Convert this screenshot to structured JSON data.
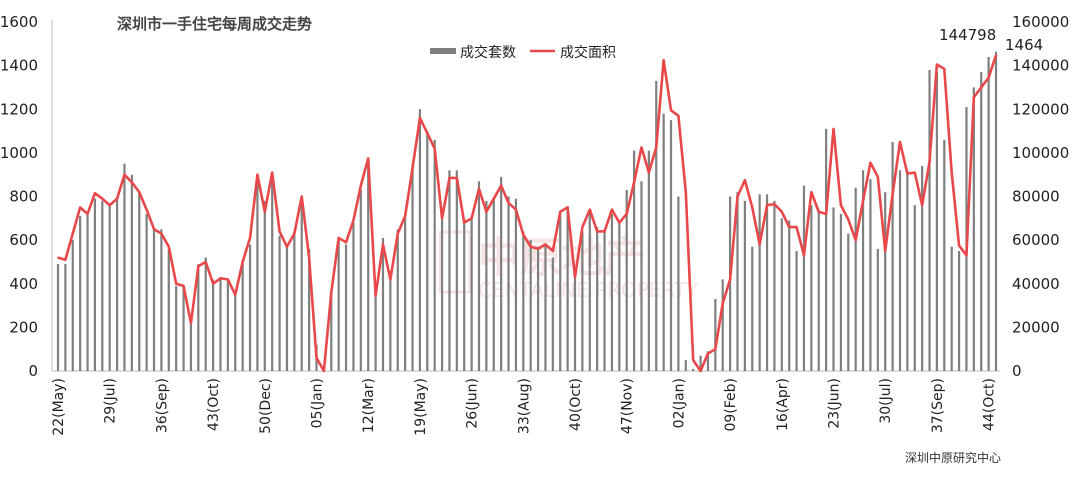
{
  "chart_data": {
    "type": "bar+line",
    "title": "深圳市一手住宅每周成交走势",
    "source": "深圳中原研究中心",
    "watermark": {
      "cn": "中原地产",
      "en": "CENTALINE PROPERTY"
    },
    "legend": [
      "成交套数",
      "成交面积"
    ],
    "legend_position": "top-center",
    "colors": {
      "bars": "#7f7f7f",
      "line": "#e8484a"
    },
    "y_left": {
      "ticks": [
        "0",
        "200",
        "400",
        "600",
        "800",
        "1000",
        "1200",
        "1400",
        "1600"
      ],
      "lim": [
        0,
        1600
      ]
    },
    "y_right": {
      "ticks": [
        "0",
        "20000",
        "40000",
        "60000",
        "80000",
        "100000",
        "120000",
        "140000",
        "160000"
      ],
      "lim": [
        0,
        160000
      ]
    },
    "x_tick_labels": [
      "22(May)",
      "29(Jul)",
      "36(Sep)",
      "43(Oct)",
      "50(Dec)",
      "05(Jan)",
      "12(Mar)",
      "19(May)",
      "26(Jun)",
      "33(Aug)",
      "40(Oct)",
      "47(Nov)",
      "02(Jan)",
      "09(Feb)",
      "16(Apr)",
      "23(Jun)",
      "30(Jul)",
      "37(Sep)",
      "44(Oct)"
    ],
    "x_tick_index": [
      0,
      7,
      14,
      21,
      28,
      35,
      42,
      49,
      56,
      63,
      70,
      77,
      84,
      91,
      98,
      105,
      112,
      119,
      126
    ],
    "annotations": {
      "last_area": "144798",
      "last_units": "1464"
    },
    "series": [
      {
        "name": "成交套数",
        "axis": "left",
        "values": [
          490,
          490,
          600,
          710,
          730,
          790,
          780,
          770,
          790,
          950,
          900,
          820,
          720,
          650,
          650,
          560,
          390,
          390,
          230,
          490,
          520,
          420,
          430,
          420,
          370,
          490,
          580,
          860,
          780,
          900,
          620,
          580,
          640,
          800,
          560,
          120,
          10,
          360,
          600,
          580,
          680,
          830,
          970,
          400,
          610,
          460,
          650,
          710,
          950,
          1200,
          1100,
          1060,
          710,
          920,
          920,
          700,
          710,
          870,
          780,
          790,
          890,
          800,
          790,
          640,
          600,
          570,
          580,
          520,
          730,
          750,
          440,
          640,
          730,
          660,
          650,
          720,
          690,
          830,
          1010,
          870,
          1010,
          1330,
          1180,
          1150,
          800,
          50,
          10,
          70,
          90,
          330,
          420,
          800,
          820,
          780,
          570,
          810,
          810,
          780,
          700,
          690,
          550,
          850,
          760,
          740,
          1110,
          750,
          720,
          630,
          840,
          920,
          880,
          560,
          820,
          1050,
          920,
          920,
          760,
          940,
          1380,
          1370,
          1060,
          570,
          550,
          1210,
          1300,
          1370,
          1440,
          1464
        ]
      },
      {
        "name": "成交面积",
        "axis": "right",
        "values": [
          52000,
          51000,
          63000,
          75000,
          72000,
          81500,
          79000,
          76000,
          79000,
          90000,
          86500,
          82000,
          74000,
          65000,
          63000,
          57000,
          40000,
          39000,
          22000,
          48000,
          50000,
          40000,
          42500,
          42000,
          35000,
          50000,
          61000,
          90000,
          73000,
          91000,
          64000,
          57000,
          63000,
          80000,
          52000,
          6000,
          0,
          36000,
          61000,
          59000,
          69000,
          85000,
          97500,
          34500,
          58000,
          42000,
          63000,
          71000,
          93000,
          116000,
          109000,
          102000,
          70000,
          88500,
          88500,
          68000,
          70000,
          83500,
          73000,
          79000,
          85000,
          77000,
          74000,
          62500,
          57000,
          56000,
          58000,
          55000,
          73000,
          75000,
          43000,
          66000,
          74000,
          64000,
          64000,
          74000,
          68000,
          72000,
          86500,
          102500,
          91000,
          102500,
          142500,
          119500,
          117000,
          82000,
          5000,
          0,
          8000,
          10000,
          31000,
          42000,
          80000,
          87500,
          75000,
          58000,
          76000,
          76500,
          73000,
          66000,
          66000,
          53000,
          82000,
          73000,
          72000,
          111000,
          76000,
          69500,
          60000,
          78000,
          95500,
          89000,
          55000,
          81000,
          105000,
          90500,
          91000,
          76000,
          96000,
          140500,
          138500,
          91000,
          57500,
          53000,
          125500,
          130000,
          134500,
          144798
        ]
      }
    ]
  }
}
